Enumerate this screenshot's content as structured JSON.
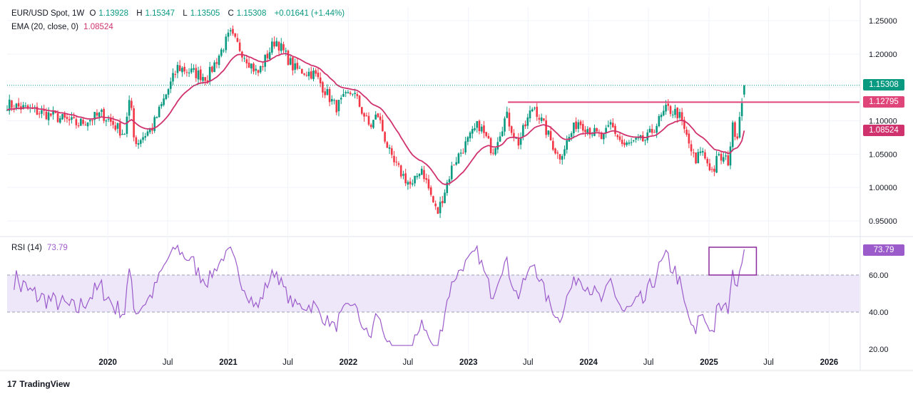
{
  "legend": {
    "symbol": "EUR/USD Spot, 1W",
    "o_label": "O",
    "o": "1.13928",
    "h_label": "H",
    "h": "1.15347",
    "l_label": "L",
    "l": "1.13505",
    "c_label": "C",
    "c": "1.15308",
    "change": "+0.01641 (+1.44%)",
    "ema_label": "EMA (20, close, 0)",
    "ema_value": "1.08524",
    "rsi_label": "RSI (14)",
    "rsi_value": "73.79"
  },
  "price_tags": {
    "last": "1.15308",
    "resistance": "1.12795",
    "ema": "1.08524",
    "rsi": "73.79"
  },
  "footer": {
    "logo": "17",
    "brand": "TradingView"
  },
  "colors": {
    "up": "#089981",
    "down": "#f23645",
    "ema": "#d0326e",
    "resistance": "#e0457a",
    "rsi": "#9c5bcb",
    "rsi_band": "#ede7f9",
    "grid": "#f0f3fa",
    "text": "#131722"
  },
  "chart_data": [
    {
      "type": "candlestick",
      "title": "EUR/USD Spot, 1W",
      "yaxis_ticks": [
        "1.25000",
        "1.20000",
        "1.15000",
        "1.10000",
        "1.05000",
        "1.00000",
        "0.95000"
      ],
      "ylim": [
        0.93,
        1.26
      ],
      "xaxis_ticks": [
        "2020",
        "Jul",
        "2021",
        "Jul",
        "2022",
        "Jul",
        "2023",
        "Jul",
        "2024",
        "Jul",
        "2025",
        "Jul",
        "2026"
      ],
      "x_range": [
        "2019-03",
        "2026-06"
      ],
      "anchors": [
        [
          "2019-03-01",
          1.125
        ],
        [
          "2019-07-01",
          1.11
        ],
        [
          "2019-10-01",
          1.095
        ],
        [
          "2019-12-15",
          1.11
        ],
        [
          "2020-02-20",
          1.08
        ],
        [
          "2020-03-10",
          1.135
        ],
        [
          "2020-03-23",
          1.065
        ],
        [
          "2020-05-15",
          1.09
        ],
        [
          "2020-07-31",
          1.18
        ],
        [
          "2020-10-30",
          1.165
        ],
        [
          "2021-01-06",
          1.23
        ],
        [
          "2021-03-31",
          1.17
        ],
        [
          "2021-05-25",
          1.222
        ],
        [
          "2021-07-20",
          1.178
        ],
        [
          "2021-09-20",
          1.17
        ],
        [
          "2021-11-24",
          1.12
        ],
        [
          "2022-01-14",
          1.145
        ],
        [
          "2022-03-07",
          1.09
        ],
        [
          "2022-03-31",
          1.11
        ],
        [
          "2022-05-13",
          1.04
        ],
        [
          "2022-07-14",
          1.0
        ],
        [
          "2022-08-10",
          1.032
        ],
        [
          "2022-09-28",
          0.96
        ],
        [
          "2022-11-15",
          1.035
        ],
        [
          "2023-02-01",
          1.095
        ],
        [
          "2023-03-15",
          1.055
        ],
        [
          "2023-04-26",
          1.108
        ],
        [
          "2023-05-31",
          1.065
        ],
        [
          "2023-07-18",
          1.124
        ],
        [
          "2023-10-03",
          1.045
        ],
        [
          "2023-11-29",
          1.1
        ],
        [
          "2024-02-14",
          1.072
        ],
        [
          "2024-03-08",
          1.095
        ],
        [
          "2024-04-16",
          1.062
        ],
        [
          "2024-06-25",
          1.072
        ],
        [
          "2024-08-26",
          1.118
        ],
        [
          "2024-10-01",
          1.11
        ],
        [
          "2024-11-22",
          1.035
        ],
        [
          "2024-12-06",
          1.058
        ],
        [
          "2025-01-13",
          1.022
        ],
        [
          "2025-01-27",
          1.045
        ],
        [
          "2025-02-28",
          1.04
        ],
        [
          "2025-03-14",
          1.09
        ],
        [
          "2025-03-28",
          1.08
        ],
        [
          "2025-04-11",
          1.135
        ],
        [
          "2025-04-21",
          1.1531
        ]
      ],
      "last_candle": {
        "open": 1.13928,
        "high": 1.15347,
        "low": 1.13505,
        "close": 1.15308
      },
      "ema": {
        "label": "EMA (20, close, 0)",
        "period": 20,
        "last": 1.08524
      },
      "resistance": {
        "value": 1.12795,
        "from": "2023-05-01"
      },
      "last_price_line": 1.15308
    },
    {
      "type": "line",
      "title": "RSI (14)",
      "yaxis_ticks": [
        "60.00",
        "40.00",
        "20.00"
      ],
      "ylim": [
        18,
        82
      ],
      "band": [
        40,
        60
      ],
      "last": 73.79,
      "highlight_box": {
        "x": [
          "2025-01-01",
          "2025-05-25"
        ],
        "y": [
          60,
          75
        ]
      }
    }
  ]
}
